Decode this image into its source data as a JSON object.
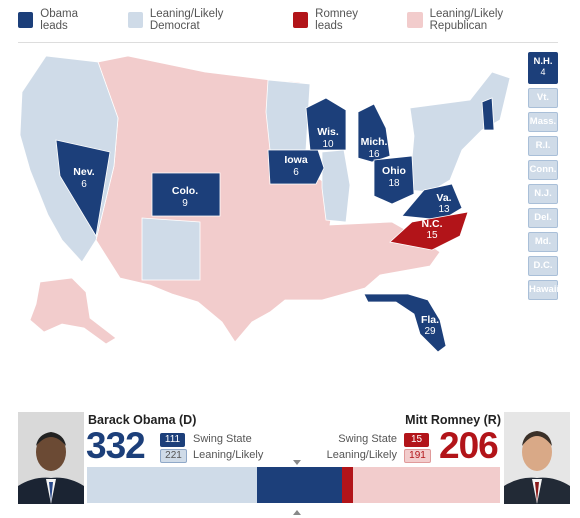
{
  "legend": [
    {
      "label": "Obama leads",
      "color": "#1c3f7a"
    },
    {
      "label": "Leaning/Likely Democrat",
      "color": "#cfdbe8"
    },
    {
      "label": "Romney leads",
      "color": "#b21419"
    },
    {
      "label": "Leaning/Likely Republican",
      "color": "#f2cccc"
    }
  ],
  "map_states": {
    "nevada": {
      "abbr": "Nev.",
      "ev": "6"
    },
    "colorado": {
      "abbr": "Colo.",
      "ev": "9"
    },
    "iowa": {
      "abbr": "Iowa",
      "ev": "6"
    },
    "wisconsin": {
      "abbr": "Wis.",
      "ev": "10"
    },
    "michigan": {
      "abbr": "Mich.",
      "ev": "16"
    },
    "ohio": {
      "abbr": "Ohio",
      "ev": "18"
    },
    "virginia": {
      "abbr": "Va.",
      "ev": "13"
    },
    "north_carolina": {
      "abbr": "N.C.",
      "ev": "15"
    },
    "florida": {
      "abbr": "Fla.",
      "ev": "29"
    }
  },
  "small_states": [
    {
      "abbr": "N.H.",
      "ev": "4"
    },
    {
      "abbr": "Vt."
    },
    {
      "abbr": "Mass."
    },
    {
      "abbr": "R.I."
    },
    {
      "abbr": "Conn."
    },
    {
      "abbr": "N.J."
    },
    {
      "abbr": "Del."
    },
    {
      "abbr": "Md."
    },
    {
      "abbr": "D.C."
    },
    {
      "abbr": "Hawaii"
    }
  ],
  "obama": {
    "name": "Barack Obama (D)",
    "total": "332",
    "swing": "111",
    "leaning": "221",
    "swing_label": "Swing State",
    "leaning_label": "Leaning/Likely"
  },
  "romney": {
    "name": "Mitt Romney (R)",
    "total": "206",
    "swing": "15",
    "leaning": "191",
    "swing_label": "Swing State",
    "leaning_label": "Leaning/Likely"
  },
  "colors": {
    "obama_dark": "#1c3f7a",
    "obama_light": "#cfdbe8",
    "romney_dark": "#b21419",
    "romney_light": "#f2cccc"
  }
}
